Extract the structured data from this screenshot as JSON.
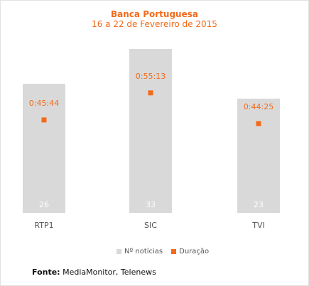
{
  "chart_data": {
    "type": "bar",
    "title": "Banca Portuguesa",
    "subtitle": "16 a 22 de Fevereiro de 2015",
    "categories": [
      "RTP1",
      "SIC",
      "TVI"
    ],
    "series": [
      {
        "name": "Nº notícias",
        "values": [
          26,
          33,
          23
        ],
        "color": "#d9d9d9"
      },
      {
        "name": "Duração",
        "values": [
          "0:45:44",
          "0:55:13",
          "0:44:25"
        ],
        "seconds": [
          2744,
          3313,
          2665
        ],
        "color": "#f26a1b"
      }
    ],
    "ylim": [
      0,
      36
    ],
    "grid": false,
    "legend_position": "bottom"
  },
  "source": {
    "label": "Fonte:",
    "text": "MediaMonitor, Telenews"
  }
}
